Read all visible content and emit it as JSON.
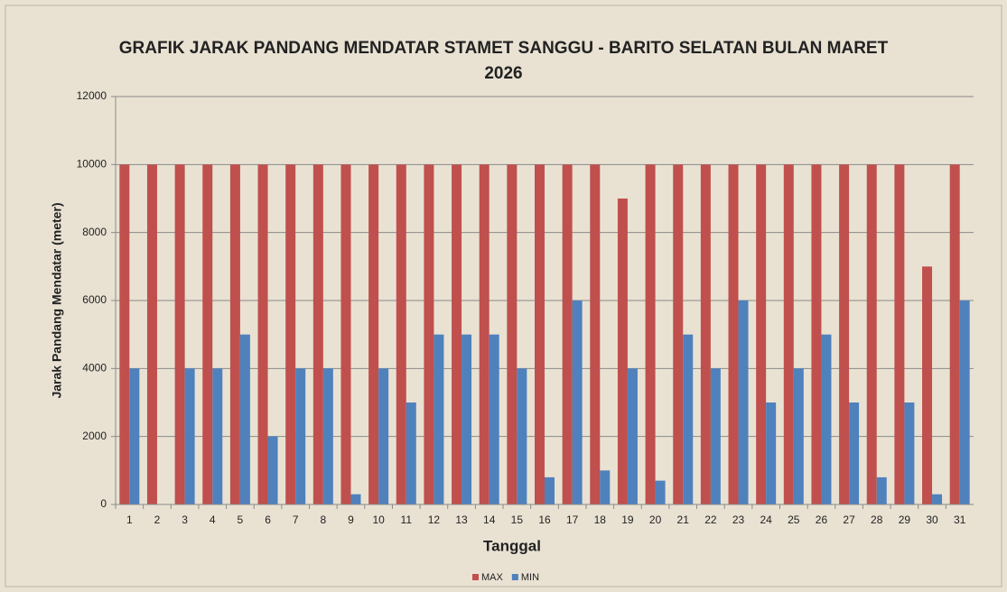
{
  "chart_data": {
    "type": "bar",
    "title": "GRAFIK JARAK PANDANG MENDATAR STAMET SANGGU - BARITO SELATAN BULAN MARET 2026",
    "x_label": "Tanggal",
    "y_label": "Jarak Pandang Mendatar (meter)",
    "categories": [
      "1",
      "2",
      "3",
      "4",
      "5",
      "6",
      "7",
      "8",
      "9",
      "10",
      "11",
      "12",
      "13",
      "14",
      "15",
      "16",
      "17",
      "18",
      "19",
      "20",
      "21",
      "22",
      "23",
      "24",
      "25",
      "26",
      "27",
      "28",
      "29",
      "30",
      "31"
    ],
    "series": [
      {
        "name": "MAX",
        "color": "#c0504d",
        "values": [
          10000,
          10000,
          10000,
          10000,
          10000,
          10000,
          10000,
          10000,
          10000,
          10000,
          10000,
          10000,
          10000,
          10000,
          10000,
          10000,
          10000,
          10000,
          9000,
          10000,
          10000,
          10000,
          10000,
          10000,
          10000,
          10000,
          10000,
          10000,
          10000,
          7000,
          10000
        ]
      },
      {
        "name": "MIN",
        "color": "#4f81bd",
        "values": [
          4000,
          0,
          4000,
          4000,
          5000,
          2000,
          4000,
          4000,
          300,
          4000,
          3000,
          5000,
          5000,
          5000,
          4000,
          800,
          6000,
          1000,
          4000,
          700,
          5000,
          4000,
          6000,
          3000,
          4000,
          5000,
          3000,
          800,
          3000,
          300,
          6000
        ]
      }
    ],
    "ylim": [
      0,
      12000
    ],
    "yticks": [
      0,
      2000,
      4000,
      6000,
      8000,
      10000,
      12000
    ],
    "grid": true,
    "legend": "bottom"
  }
}
